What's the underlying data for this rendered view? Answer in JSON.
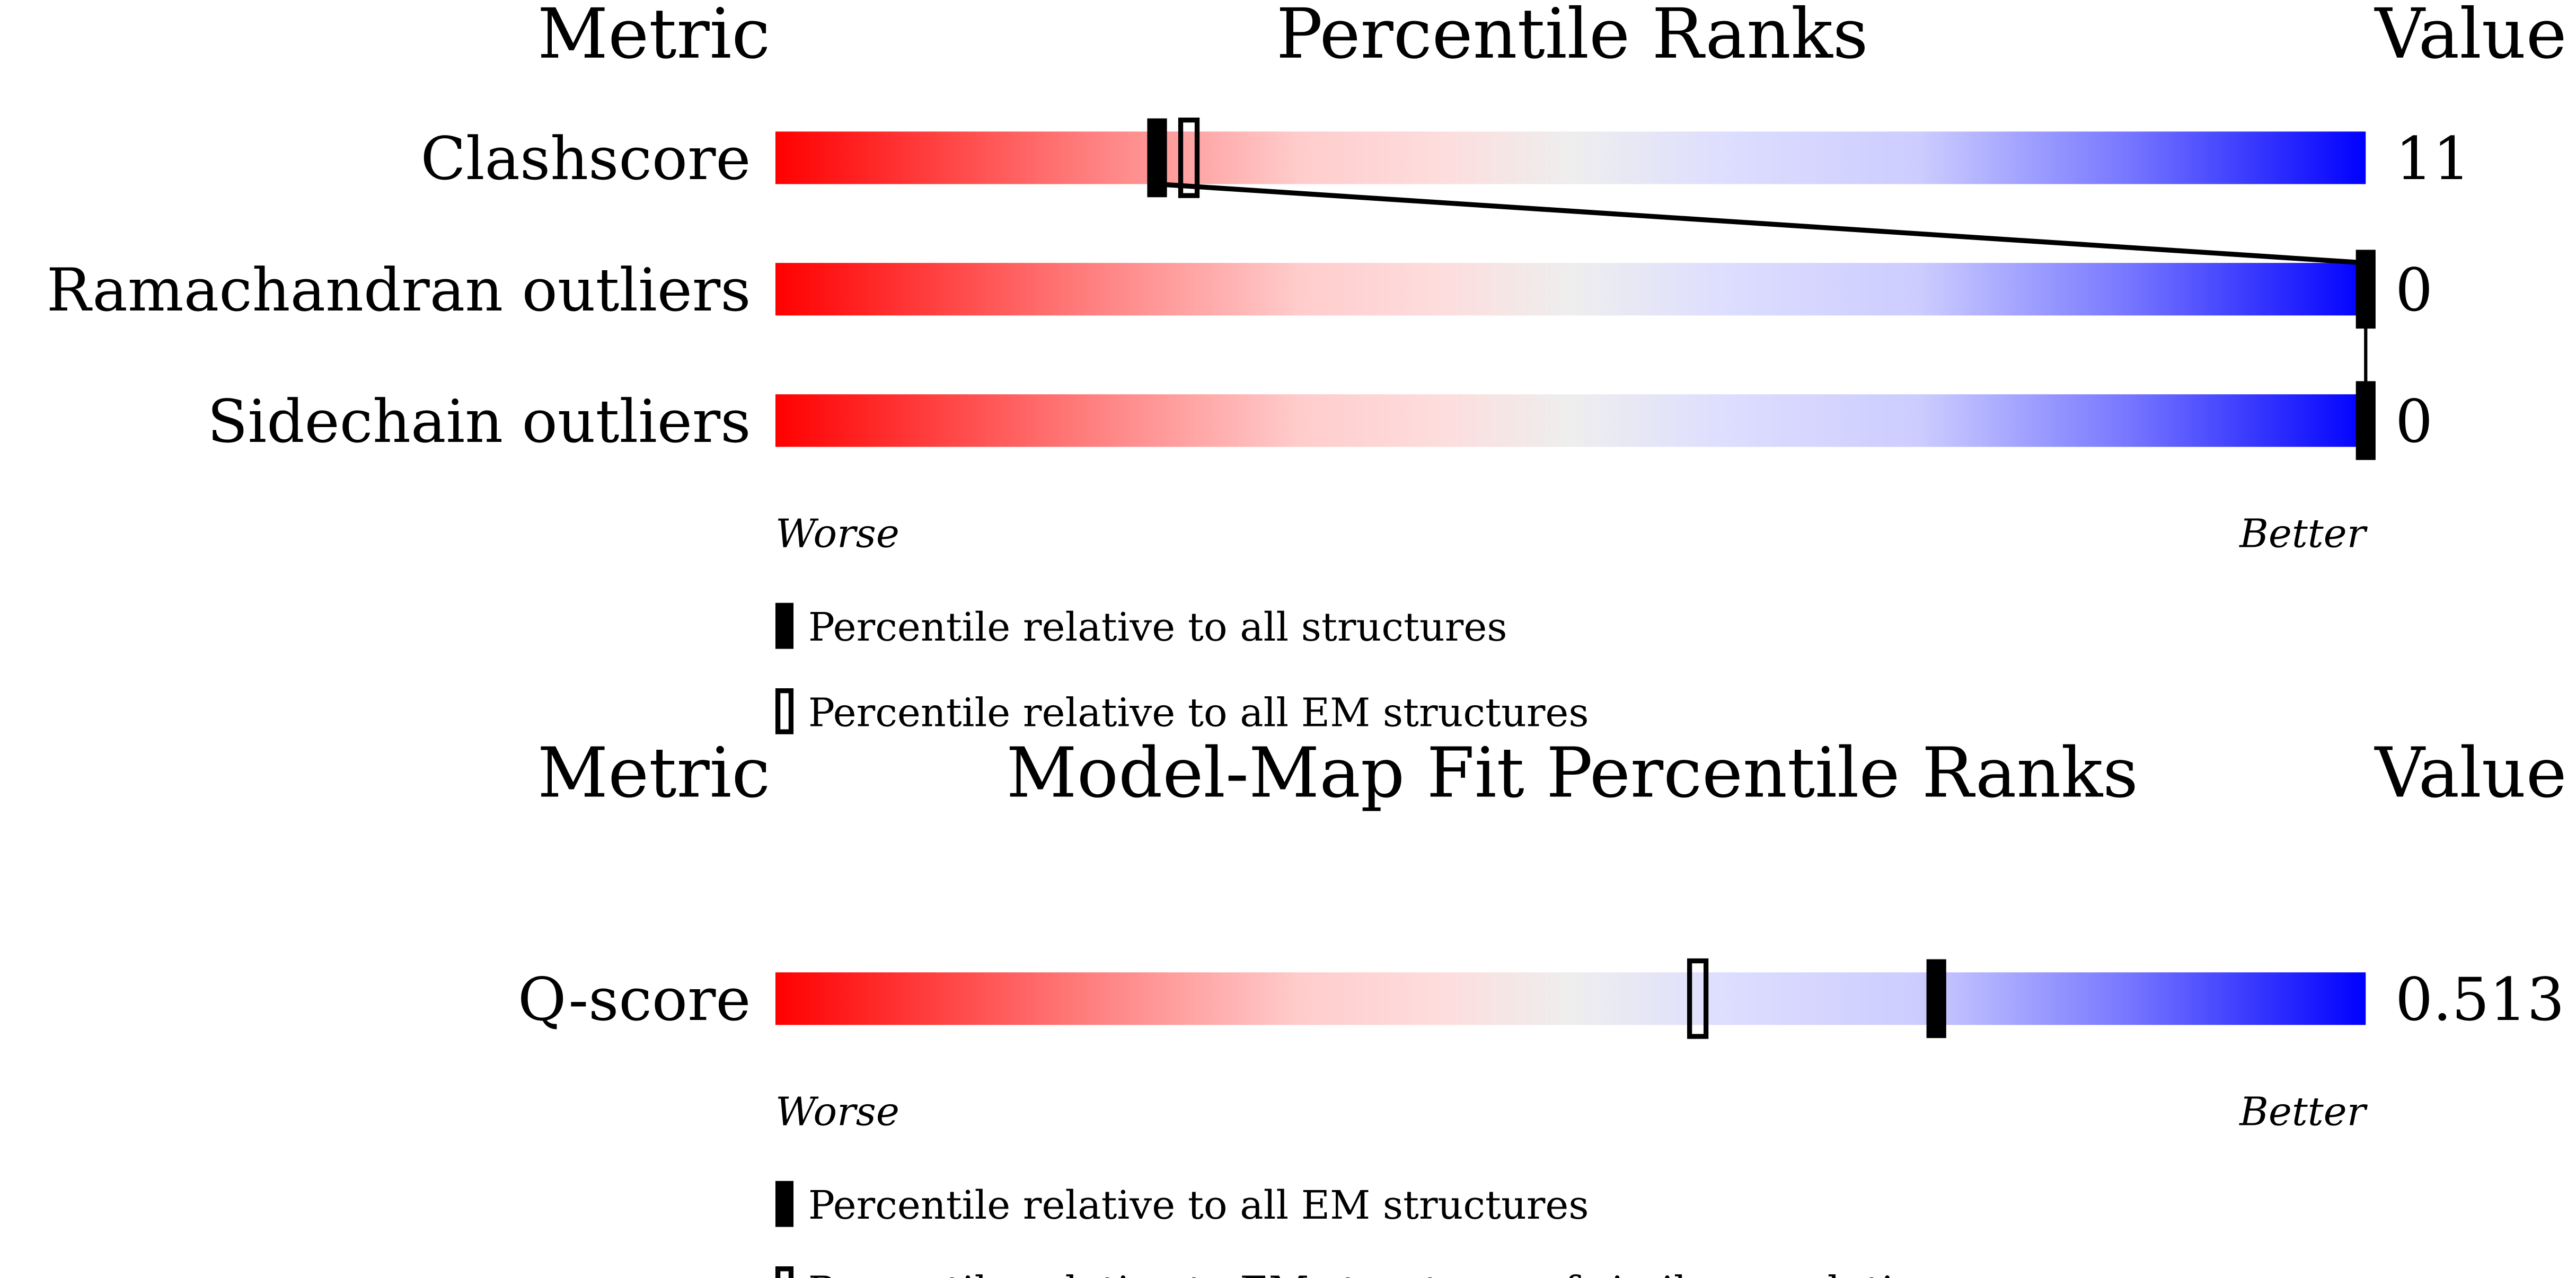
{
  "chart_data": [
    {
      "type": "bar",
      "header": {
        "metric": "Metric",
        "title": "Percentile Ranks",
        "value": "Value"
      },
      "xlim": [
        0,
        100
      ],
      "scale": {
        "left": "Worse",
        "right": "Better"
      },
      "gradient_colors": [
        "#ff0000",
        "#ffdddd",
        "#eeeeee",
        "#ddddff",
        "#0000ff"
      ],
      "rows": [
        {
          "metric": "Clashscore",
          "value": "11",
          "percentile_all": 24,
          "percentile_em": 26
        },
        {
          "metric": "Ramachandran outliers",
          "value": "0",
          "percentile_all": 100
        },
        {
          "metric": "Sidechain outliers",
          "value": "0",
          "percentile_all": 100
        }
      ],
      "legend": [
        {
          "marker": "filled",
          "label": "Percentile relative to all structures"
        },
        {
          "marker": "open",
          "label": "Percentile relative to all EM structures"
        }
      ]
    },
    {
      "type": "bar",
      "header": {
        "metric": "Metric",
        "title": "Model-Map Fit Percentile Ranks",
        "value": "Value"
      },
      "xlim": [
        0,
        100
      ],
      "scale": {
        "left": "Worse",
        "right": "Better"
      },
      "rows": [
        {
          "metric": "Q-score",
          "value": "0.513",
          "percentile_all": 73,
          "percentile_em": 58
        }
      ],
      "legend": [
        {
          "marker": "filled",
          "label": "Percentile relative to all EM structures"
        },
        {
          "marker": "open",
          "label": "Percentile relative to EM structures of similar resolution"
        }
      ]
    }
  ]
}
